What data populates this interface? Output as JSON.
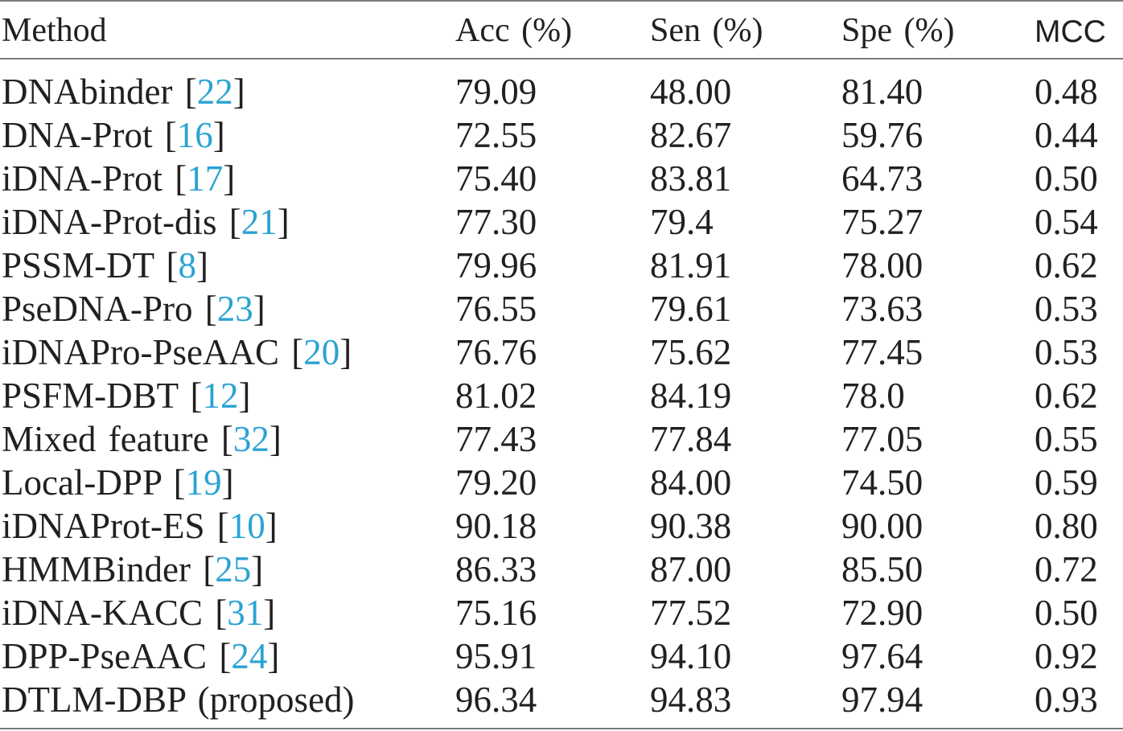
{
  "table": {
    "headers": [
      "Method",
      "Acc (%)",
      "Sen (%)",
      "Spe (%)",
      "MCC"
    ],
    "ref_color": "#2aa3d3",
    "rows": [
      {
        "method": "DNAbinder",
        "ref": "22",
        "acc": "79.09",
        "sen": "48.00",
        "spe": "81.40",
        "mcc": "0.48"
      },
      {
        "method": "DNA-Prot",
        "ref": "16",
        "acc": "72.55",
        "sen": "82.67",
        "spe": "59.76",
        "mcc": "0.44"
      },
      {
        "method": "iDNA-Prot",
        "ref": "17",
        "acc": "75.40",
        "sen": "83.81",
        "spe": "64.73",
        "mcc": "0.50"
      },
      {
        "method": "iDNA-Prot-dis",
        "ref": "21",
        "acc": "77.30",
        "sen": "79.4",
        "spe": "75.27",
        "mcc": "0.54"
      },
      {
        "method": "PSSM-DT",
        "ref": "8",
        "acc": "79.96",
        "sen": "81.91",
        "spe": "78.00",
        "mcc": "0.62"
      },
      {
        "method": "PseDNA-Pro",
        "ref": "23",
        "acc": "76.55",
        "sen": "79.61",
        "spe": "73.63",
        "mcc": "0.53"
      },
      {
        "method": "iDNAPro-PseAAC",
        "ref": "20",
        "acc": "76.76",
        "sen": "75.62",
        "spe": "77.45",
        "mcc": "0.53"
      },
      {
        "method": "PSFM-DBT",
        "ref": "12",
        "acc": "81.02",
        "sen": "84.19",
        "spe": "78.0",
        "mcc": "0.62"
      },
      {
        "method": "Mixed feature",
        "ref": "32",
        "acc": "77.43",
        "sen": "77.84",
        "spe": "77.05",
        "mcc": "0.55"
      },
      {
        "method": "Local-DPP",
        "ref": "19",
        "acc": "79.20",
        "sen": "84.00",
        "spe": "74.50",
        "mcc": "0.59"
      },
      {
        "method": "iDNAProt-ES",
        "ref": "10",
        "acc": "90.18",
        "sen": "90.38",
        "spe": "90.00",
        "mcc": "0.80"
      },
      {
        "method": "HMMBinder",
        "ref": "25",
        "acc": "86.33",
        "sen": "87.00",
        "spe": "85.50",
        "mcc": "0.72"
      },
      {
        "method": "iDNA-KACC",
        "ref": "31",
        "acc": "75.16",
        "sen": "77.52",
        "spe": "72.90",
        "mcc": "0.50"
      },
      {
        "method": "DPP-PseAAC",
        "ref": "24",
        "acc": "95.91",
        "sen": "94.10",
        "spe": "97.64",
        "mcc": "0.92"
      },
      {
        "method": "DTLM-DBP (proposed)",
        "ref": "",
        "acc": "96.34",
        "sen": "94.83",
        "spe": "97.94",
        "mcc": "0.93"
      }
    ]
  }
}
